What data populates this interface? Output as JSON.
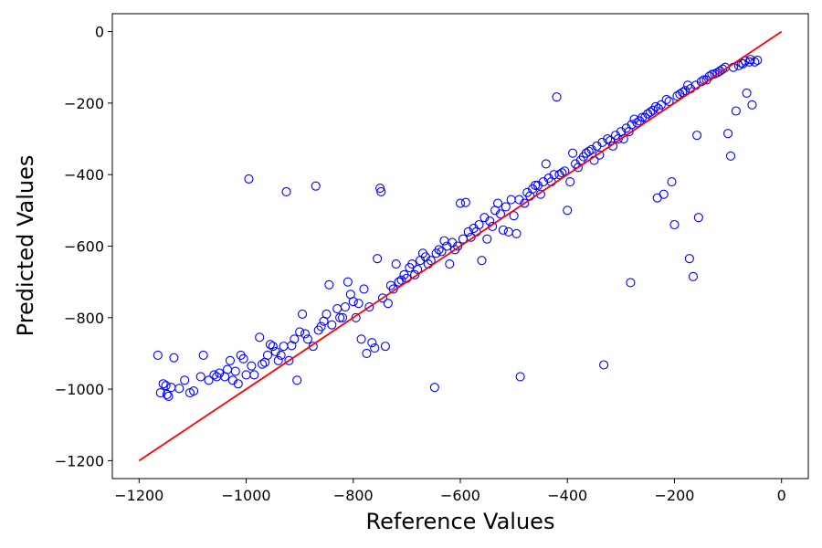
{
  "chart_data": {
    "type": "scatter",
    "xlabel": "Reference Values",
    "ylabel": "Predicted Values",
    "xlim": [
      -1250,
      50
    ],
    "ylim": [
      -1250,
      50
    ],
    "xticks": [
      -1200,
      -1000,
      -800,
      -600,
      -400,
      -200,
      0
    ],
    "yticks": [
      -1200,
      -1000,
      -800,
      -600,
      -400,
      -200,
      0
    ],
    "grid": false,
    "colors": {
      "points": "#0000ff",
      "line": "#ff0000"
    },
    "reference_line": {
      "x": [
        -1200,
        0
      ],
      "y": [
        -1200,
        0
      ]
    },
    "series": [
      {
        "marker": "open-circle",
        "points": [
          [
            -1165,
            -905
          ],
          [
            -1160,
            -1010
          ],
          [
            -1155,
            -985
          ],
          [
            -1150,
            -990
          ],
          [
            -1148,
            -1015
          ],
          [
            -1145,
            -1020
          ],
          [
            -1140,
            -995
          ],
          [
            -1135,
            -912
          ],
          [
            -1125,
            -998
          ],
          [
            -1115,
            -975
          ],
          [
            -1105,
            -1010
          ],
          [
            -1098,
            -1005
          ],
          [
            -1085,
            -965
          ],
          [
            -1080,
            -905
          ],
          [
            -1070,
            -975
          ],
          [
            -1060,
            -960
          ],
          [
            -1050,
            -955
          ],
          [
            -1040,
            -965
          ],
          [
            -1030,
            -920
          ],
          [
            -1020,
            -950
          ],
          [
            -1015,
            -985
          ],
          [
            -1010,
            -905
          ],
          [
            -1000,
            -960
          ],
          [
            -995,
            -412
          ],
          [
            -990,
            -935
          ],
          [
            -985,
            -960
          ],
          [
            -975,
            -855
          ],
          [
            -970,
            -930
          ],
          [
            -960,
            -905
          ],
          [
            -955,
            -875
          ],
          [
            -950,
            -880
          ],
          [
            -940,
            -920
          ],
          [
            -935,
            -905
          ],
          [
            -925,
            -448
          ],
          [
            -920,
            -920
          ],
          [
            -915,
            -878
          ],
          [
            -905,
            -975
          ],
          [
            -900,
            -840
          ],
          [
            -895,
            -790
          ],
          [
            -885,
            -860
          ],
          [
            -875,
            -880
          ],
          [
            -870,
            -432
          ],
          [
            -865,
            -835
          ],
          [
            -855,
            -810
          ],
          [
            -845,
            -708
          ],
          [
            -840,
            -820
          ],
          [
            -830,
            -775
          ],
          [
            -820,
            -800
          ],
          [
            -810,
            -700
          ],
          [
            -800,
            -755
          ],
          [
            -795,
            -800
          ],
          [
            -785,
            -860
          ],
          [
            -780,
            -720
          ],
          [
            -775,
            -900
          ],
          [
            -770,
            -770
          ],
          [
            -765,
            -870
          ],
          [
            -760,
            -885
          ],
          [
            -755,
            -635
          ],
          [
            -750,
            -438
          ],
          [
            -748,
            -448
          ],
          [
            -745,
            -745
          ],
          [
            -740,
            -880
          ],
          [
            -735,
            -760
          ],
          [
            -730,
            -710
          ],
          [
            -720,
            -650
          ],
          [
            -710,
            -695
          ],
          [
            -700,
            -690
          ],
          [
            -690,
            -650
          ],
          [
            -680,
            -665
          ],
          [
            -670,
            -620
          ],
          [
            -660,
            -650
          ],
          [
            -648,
            -995
          ],
          [
            -640,
            -610
          ],
          [
            -630,
            -585
          ],
          [
            -620,
            -650
          ],
          [
            -610,
            -610
          ],
          [
            -600,
            -480
          ],
          [
            -590,
            -478
          ],
          [
            -580,
            -575
          ],
          [
            -570,
            -560
          ],
          [
            -560,
            -640
          ],
          [
            -550,
            -580
          ],
          [
            -540,
            -545
          ],
          [
            -530,
            -480
          ],
          [
            -520,
            -555
          ],
          [
            -510,
            -560
          ],
          [
            -500,
            -515
          ],
          [
            -495,
            -565
          ],
          [
            -488,
            -965
          ],
          [
            -480,
            -480
          ],
          [
            -470,
            -460
          ],
          [
            -460,
            -430
          ],
          [
            -450,
            -455
          ],
          [
            -440,
            -370
          ],
          [
            -430,
            -420
          ],
          [
            -425,
            -400
          ],
          [
            -420,
            -183
          ],
          [
            -410,
            -395
          ],
          [
            -400,
            -500
          ],
          [
            -395,
            -420
          ],
          [
            -390,
            -340
          ],
          [
            -380,
            -380
          ],
          [
            -370,
            -350
          ],
          [
            -360,
            -335
          ],
          [
            -350,
            -360
          ],
          [
            -340,
            -345
          ],
          [
            -332,
            -932
          ],
          [
            -325,
            -300
          ],
          [
            -315,
            -320
          ],
          [
            -305,
            -300
          ],
          [
            -295,
            -300
          ],
          [
            -285,
            -280
          ],
          [
            -282,
            -702
          ],
          [
            -275,
            -245
          ],
          [
            -265,
            -250
          ],
          [
            -255,
            -240
          ],
          [
            -245,
            -225
          ],
          [
            -235,
            -210
          ],
          [
            -232,
            -465
          ],
          [
            -220,
            -455
          ],
          [
            -215,
            -190
          ],
          [
            -205,
            -420
          ],
          [
            -200,
            -540
          ],
          [
            -195,
            -180
          ],
          [
            -185,
            -170
          ],
          [
            -175,
            -150
          ],
          [
            -172,
            -635
          ],
          [
            -165,
            -685
          ],
          [
            -158,
            -290
          ],
          [
            -155,
            -520
          ],
          [
            -150,
            -140
          ],
          [
            -140,
            -135
          ],
          [
            -130,
            -120
          ],
          [
            -120,
            -115
          ],
          [
            -110,
            -105
          ],
          [
            -100,
            -285
          ],
          [
            -95,
            -348
          ],
          [
            -90,
            -100
          ],
          [
            -85,
            -222
          ],
          [
            -80,
            -95
          ],
          [
            -72,
            -90
          ],
          [
            -65,
            -172
          ],
          [
            -60,
            -85
          ],
          [
            -55,
            -205
          ],
          [
            -50,
            -85
          ],
          [
            -45,
            -80
          ],
          [
            -1055,
            -965
          ],
          [
            -1035,
            -945
          ],
          [
            -1025,
            -975
          ],
          [
            -1005,
            -915
          ],
          [
            -965,
            -925
          ],
          [
            -945,
            -895
          ],
          [
            -930,
            -880
          ],
          [
            -910,
            -860
          ],
          [
            -890,
            -845
          ],
          [
            -860,
            -825
          ],
          [
            -850,
            -790
          ],
          [
            -825,
            -800
          ],
          [
            -815,
            -770
          ],
          [
            -805,
            -735
          ],
          [
            -790,
            -760
          ],
          [
            -725,
            -720
          ],
          [
            -715,
            -700
          ],
          [
            -705,
            -680
          ],
          [
            -695,
            -660
          ],
          [
            -685,
            -680
          ],
          [
            -675,
            -640
          ],
          [
            -665,
            -630
          ],
          [
            -655,
            -640
          ],
          [
            -645,
            -620
          ],
          [
            -635,
            -615
          ],
          [
            -625,
            -600
          ],
          [
            -615,
            -590
          ],
          [
            -605,
            -600
          ],
          [
            -595,
            -580
          ],
          [
            -585,
            -560
          ],
          [
            -575,
            -550
          ],
          [
            -565,
            -540
          ],
          [
            -555,
            -520
          ],
          [
            -545,
            -530
          ],
          [
            -535,
            -500
          ],
          [
            -525,
            -510
          ],
          [
            -515,
            -490
          ],
          [
            -505,
            -470
          ],
          [
            -490,
            -470
          ],
          [
            -475,
            -450
          ],
          [
            -465,
            -440
          ],
          [
            -455,
            -430
          ],
          [
            -445,
            -420
          ],
          [
            -435,
            -410
          ],
          [
            -415,
            -400
          ],
          [
            -405,
            -390
          ],
          [
            -385,
            -370
          ],
          [
            -375,
            -360
          ],
          [
            -365,
            -340
          ],
          [
            -355,
            -330
          ],
          [
            -345,
            -320
          ],
          [
            -335,
            -310
          ],
          [
            -320,
            -305
          ],
          [
            -310,
            -290
          ],
          [
            -300,
            -280
          ],
          [
            -290,
            -270
          ],
          [
            -280,
            -260
          ],
          [
            -270,
            -255
          ],
          [
            -260,
            -240
          ],
          [
            -250,
            -230
          ],
          [
            -240,
            -220
          ],
          [
            -230,
            -215
          ],
          [
            -225,
            -205
          ],
          [
            -210,
            -195
          ],
          [
            -190,
            -175
          ],
          [
            -180,
            -165
          ],
          [
            -170,
            -160
          ],
          [
            -160,
            -150
          ],
          [
            -145,
            -135
          ],
          [
            -135,
            -125
          ],
          [
            -125,
            -118
          ],
          [
            -115,
            -110
          ],
          [
            -105,
            -100
          ],
          [
            -75,
            -88
          ],
          [
            -68,
            -82
          ],
          [
            -58,
            -78
          ]
        ]
      }
    ]
  }
}
